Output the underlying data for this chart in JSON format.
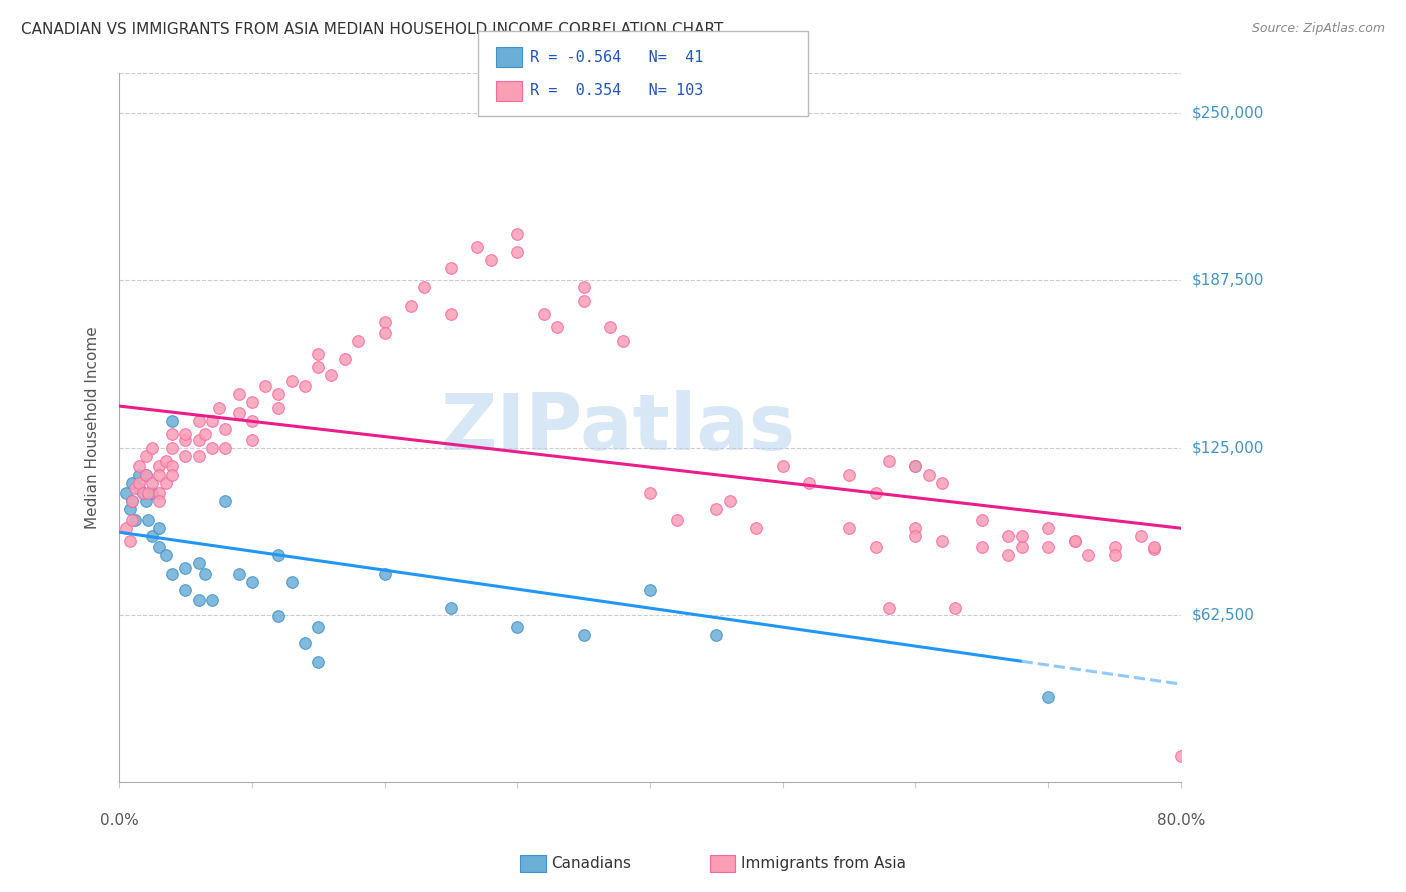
{
  "title": "CANADIAN VS IMMIGRANTS FROM ASIA MEDIAN HOUSEHOLD INCOME CORRELATION CHART",
  "source": "Source: ZipAtlas.com",
  "ylabel": "Median Household Income",
  "ytick_labels": [
    "$62,500",
    "$125,000",
    "$187,500",
    "$250,000"
  ],
  "ytick_values": [
    62500,
    125000,
    187500,
    250000
  ],
  "ymin": 0,
  "ymax": 265000,
  "xmin": 0.0,
  "xmax": 0.8,
  "watermark": "ZIPatlas",
  "color_blue": "#6baed6",
  "color_pink": "#fa9fb5",
  "color_blue_dark": "#4292c6",
  "color_pink_dark": "#f768a1",
  "legend_label1": "Canadians",
  "legend_label2": "Immigrants from Asia",
  "blue_scatter_x": [
    0.005,
    0.008,
    0.01,
    0.01,
    0.012,
    0.015,
    0.015,
    0.018,
    0.02,
    0.02,
    0.022,
    0.025,
    0.025,
    0.03,
    0.03,
    0.035,
    0.04,
    0.04,
    0.05,
    0.05,
    0.06,
    0.06,
    0.065,
    0.07,
    0.08,
    0.09,
    0.1,
    0.12,
    0.12,
    0.13,
    0.14,
    0.15,
    0.15,
    0.2,
    0.25,
    0.3,
    0.35,
    0.4,
    0.45,
    0.6,
    0.7
  ],
  "blue_scatter_y": [
    108000,
    102000,
    112000,
    105000,
    98000,
    110000,
    115000,
    108000,
    105000,
    115000,
    98000,
    92000,
    108000,
    88000,
    95000,
    85000,
    135000,
    78000,
    72000,
    80000,
    82000,
    68000,
    78000,
    68000,
    105000,
    78000,
    75000,
    85000,
    62000,
    75000,
    52000,
    58000,
    45000,
    78000,
    65000,
    58000,
    55000,
    72000,
    55000,
    118000,
    32000
  ],
  "pink_scatter_x": [
    0.005,
    0.008,
    0.01,
    0.01,
    0.012,
    0.015,
    0.015,
    0.018,
    0.02,
    0.02,
    0.022,
    0.025,
    0.025,
    0.03,
    0.03,
    0.03,
    0.03,
    0.035,
    0.035,
    0.04,
    0.04,
    0.04,
    0.04,
    0.05,
    0.05,
    0.05,
    0.06,
    0.06,
    0.06,
    0.065,
    0.07,
    0.07,
    0.075,
    0.08,
    0.08,
    0.09,
    0.09,
    0.1,
    0.1,
    0.1,
    0.11,
    0.12,
    0.12,
    0.13,
    0.14,
    0.15,
    0.15,
    0.16,
    0.17,
    0.18,
    0.2,
    0.2,
    0.22,
    0.23,
    0.25,
    0.25,
    0.27,
    0.28,
    0.3,
    0.3,
    0.32,
    0.33,
    0.35,
    0.35,
    0.37,
    0.38,
    0.4,
    0.42,
    0.45,
    0.46,
    0.48,
    0.5,
    0.52,
    0.55,
    0.57,
    0.58,
    0.6,
    0.61,
    0.62,
    0.63,
    0.65,
    0.67,
    0.68,
    0.7,
    0.72,
    0.73,
    0.75,
    0.77,
    0.78,
    0.58,
    0.6,
    0.62,
    0.65,
    0.67,
    0.68,
    0.7,
    0.72,
    0.75,
    0.78,
    0.8,
    0.55,
    0.57,
    0.6
  ],
  "pink_scatter_y": [
    95000,
    90000,
    105000,
    98000,
    110000,
    112000,
    118000,
    108000,
    115000,
    122000,
    108000,
    112000,
    125000,
    118000,
    108000,
    105000,
    115000,
    120000,
    112000,
    130000,
    125000,
    118000,
    115000,
    128000,
    122000,
    130000,
    135000,
    128000,
    122000,
    130000,
    135000,
    125000,
    140000,
    132000,
    125000,
    138000,
    145000,
    142000,
    135000,
    128000,
    148000,
    145000,
    140000,
    150000,
    148000,
    155000,
    160000,
    152000,
    158000,
    165000,
    172000,
    168000,
    178000,
    185000,
    175000,
    192000,
    200000,
    195000,
    198000,
    205000,
    175000,
    170000,
    180000,
    185000,
    170000,
    165000,
    108000,
    98000,
    102000,
    105000,
    95000,
    118000,
    112000,
    115000,
    108000,
    120000,
    118000,
    115000,
    112000,
    65000,
    98000,
    92000,
    88000,
    95000,
    90000,
    85000,
    88000,
    92000,
    87000,
    65000,
    95000,
    90000,
    88000,
    85000,
    92000,
    88000,
    90000,
    85000,
    88000,
    10000,
    95000,
    88000,
    92000
  ]
}
